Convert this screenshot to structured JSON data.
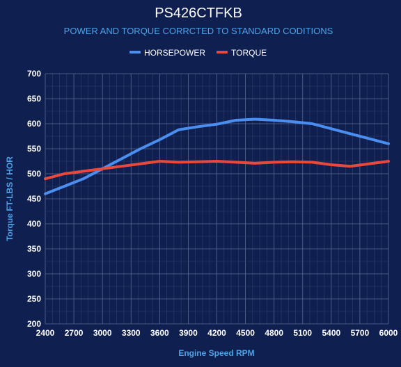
{
  "chart_data": {
    "type": "line",
    "title": "PS426CTFKB",
    "subtitle": "POWER AND TORQUE CORRCTED TO STANDARD CODITIONS",
    "xlabel": "Engine Speed RPM",
    "ylabel": "Torque FT-LBS / HOR",
    "xlim": [
      2400,
      6000
    ],
    "ylim": [
      200,
      700
    ],
    "x_ticks": [
      2400,
      2700,
      3000,
      3300,
      3600,
      3900,
      4200,
      4500,
      4800,
      5100,
      5400,
      5700,
      6000
    ],
    "y_ticks": [
      200,
      250,
      300,
      350,
      400,
      450,
      500,
      550,
      600,
      650,
      700
    ],
    "grid": true,
    "legend_position": "top",
    "series": [
      {
        "name": "HORSEPOWER",
        "color": "#4a8ef0",
        "points": [
          [
            2400,
            460
          ],
          [
            2600,
            475
          ],
          [
            2800,
            490
          ],
          [
            3000,
            510
          ],
          [
            3200,
            530
          ],
          [
            3400,
            550
          ],
          [
            3600,
            568
          ],
          [
            3800,
            588
          ],
          [
            4000,
            594
          ],
          [
            4200,
            599
          ],
          [
            4400,
            607
          ],
          [
            4600,
            609
          ],
          [
            4800,
            607
          ],
          [
            5000,
            604
          ],
          [
            5200,
            600
          ],
          [
            5400,
            590
          ],
          [
            5600,
            580
          ],
          [
            5800,
            570
          ],
          [
            6000,
            560
          ]
        ]
      },
      {
        "name": "TORQUE",
        "color": "#e8493c",
        "points": [
          [
            2400,
            490
          ],
          [
            2600,
            500
          ],
          [
            2800,
            505
          ],
          [
            3000,
            510
          ],
          [
            3200,
            515
          ],
          [
            3400,
            520
          ],
          [
            3600,
            525
          ],
          [
            3800,
            523
          ],
          [
            4000,
            524
          ],
          [
            4200,
            525
          ],
          [
            4400,
            523
          ],
          [
            4600,
            521
          ],
          [
            4800,
            523
          ],
          [
            5000,
            524
          ],
          [
            5200,
            523
          ],
          [
            5400,
            518
          ],
          [
            5600,
            515
          ],
          [
            5800,
            520
          ],
          [
            6000,
            525
          ]
        ]
      }
    ]
  }
}
